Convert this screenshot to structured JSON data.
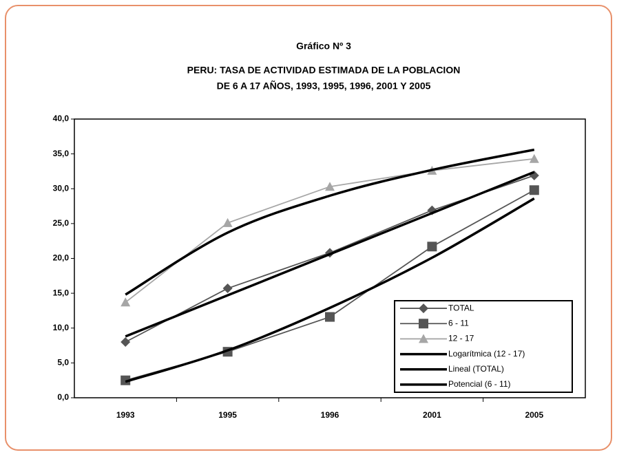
{
  "chart_data": {
    "type": "line",
    "title": "Gráfico Nº 3",
    "subtitle": [
      "PERU: TASA DE ACTIVIDAD ESTIMADA DE LA POBLACION",
      "DE 6 A 17 AÑOS, 1993, 1995, 1996, 2001 Y 2005"
    ],
    "categories": [
      "1993",
      "1995",
      "1996",
      "2001",
      "2005"
    ],
    "ylim": [
      0,
      40
    ],
    "yticks": [
      {
        "value": 0,
        "label": "0,0"
      },
      {
        "value": 5,
        "label": "5,0"
      },
      {
        "value": 10,
        "label": "10,0"
      },
      {
        "value": 15,
        "label": "15,0"
      },
      {
        "value": 20,
        "label": "20,0"
      },
      {
        "value": 25,
        "label": "25,0"
      },
      {
        "value": 30,
        "label": "30,0"
      },
      {
        "value": 35,
        "label": "35,0"
      },
      {
        "value": 40,
        "label": "40,0"
      }
    ],
    "legend": "bottom-right",
    "series": [
      {
        "name": "TOTAL",
        "color": "#555555",
        "marker": "diamond",
        "values": [
          8.0,
          15.7,
          20.8,
          26.9,
          31.9
        ]
      },
      {
        "name": "6 - 11",
        "color": "#555555",
        "marker": "square",
        "values": [
          2.5,
          6.6,
          11.6,
          21.7,
          29.8
        ]
      },
      {
        "name": "12 - 17",
        "color": "#a6a6a6",
        "marker": "triangle",
        "values": [
          13.7,
          25.1,
          30.3,
          32.6,
          34.3
        ]
      },
      {
        "name": "Logarítmica (12 - 17)",
        "color": "#000000",
        "marker": "none",
        "smooth": true,
        "values": [
          14.8,
          23.7,
          29.0,
          32.7,
          35.6
        ]
      },
      {
        "name": "Lineal (TOTAL)",
        "color": "#000000",
        "marker": "none",
        "smooth": true,
        "values": [
          8.8,
          14.7,
          20.6,
          26.5,
          32.4
        ]
      },
      {
        "name": "Potencial (6 - 11)",
        "color": "#000000",
        "marker": "none",
        "smooth": true,
        "values": [
          2.3,
          6.8,
          12.9,
          20.1,
          28.6
        ]
      }
    ]
  }
}
